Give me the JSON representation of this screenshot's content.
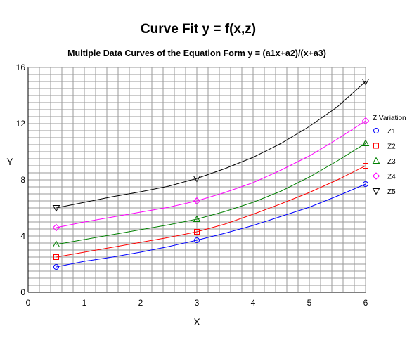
{
  "chart_data": {
    "type": "line",
    "title": "Curve Fit y = f(x,z)",
    "subtitle": "Multiple Data Curves of the Equation Form y = (a1x+a2)/(x+a3)",
    "xlabel": "X",
    "ylabel": "Y",
    "xlim": [
      0,
      6
    ],
    "ylim": [
      0,
      16
    ],
    "xticks": [
      "0",
      "1",
      "2",
      "3",
      "4",
      "5",
      "6"
    ],
    "yticks": [
      "0",
      "4",
      "8",
      "12",
      "16"
    ],
    "grid": true,
    "legend": {
      "title": "Z Variation",
      "placement": "right"
    },
    "series": [
      {
        "name": "Z1",
        "color": "#0000ff",
        "marker": "circle",
        "points_x": [
          0.5,
          3,
          6
        ],
        "points_y": [
          1.8,
          3.7,
          7.7
        ],
        "curve_x": [
          0.5,
          1,
          1.5,
          2,
          2.5,
          3,
          3.5,
          4,
          4.5,
          5,
          5.5,
          6
        ],
        "curve_y": [
          1.8,
          2.2,
          2.5,
          2.85,
          3.25,
          3.7,
          4.2,
          4.75,
          5.4,
          6.05,
          6.85,
          7.7
        ]
      },
      {
        "name": "Z2",
        "color": "#ff0000",
        "marker": "square",
        "points_x": [
          0.5,
          3,
          6
        ],
        "points_y": [
          2.5,
          4.3,
          9.0
        ],
        "curve_x": [
          0.5,
          1,
          1.5,
          2,
          2.5,
          3,
          3.5,
          4,
          4.5,
          5,
          5.5,
          6
        ],
        "curve_y": [
          2.5,
          2.85,
          3.2,
          3.55,
          3.9,
          4.3,
          4.85,
          5.55,
          6.3,
          7.1,
          8.0,
          9.0
        ]
      },
      {
        "name": "Z3",
        "color": "#008000",
        "marker": "triangle-up",
        "points_x": [
          0.5,
          3,
          6
        ],
        "points_y": [
          3.4,
          5.2,
          10.6
        ],
        "curve_x": [
          0.5,
          1,
          1.5,
          2,
          2.5,
          3,
          3.5,
          4,
          4.5,
          5,
          5.5,
          6
        ],
        "curve_y": [
          3.4,
          3.75,
          4.1,
          4.45,
          4.8,
          5.2,
          5.75,
          6.4,
          7.2,
          8.2,
          9.35,
          10.6
        ]
      },
      {
        "name": "Z4",
        "color": "#ff00ff",
        "marker": "diamond",
        "points_x": [
          0.5,
          3,
          6
        ],
        "points_y": [
          4.6,
          6.5,
          12.2
        ],
        "curve_x": [
          0.5,
          1,
          1.5,
          2,
          2.5,
          3,
          3.5,
          4,
          4.5,
          5,
          5.5,
          6
        ],
        "curve_y": [
          4.6,
          5.0,
          5.35,
          5.7,
          6.05,
          6.5,
          7.1,
          7.8,
          8.7,
          9.7,
          10.9,
          12.2
        ]
      },
      {
        "name": "Z5",
        "color": "#000000",
        "marker": "triangle-down",
        "points_x": [
          0.5,
          3,
          6
        ],
        "points_y": [
          6.0,
          8.1,
          15.0
        ],
        "curve_x": [
          0.5,
          1,
          1.5,
          2,
          2.5,
          3,
          3.5,
          4,
          4.5,
          5,
          5.5,
          6
        ],
        "curve_y": [
          6.0,
          6.4,
          6.8,
          7.15,
          7.55,
          8.1,
          8.8,
          9.6,
          10.6,
          11.8,
          13.2,
          15.0
        ]
      }
    ]
  }
}
